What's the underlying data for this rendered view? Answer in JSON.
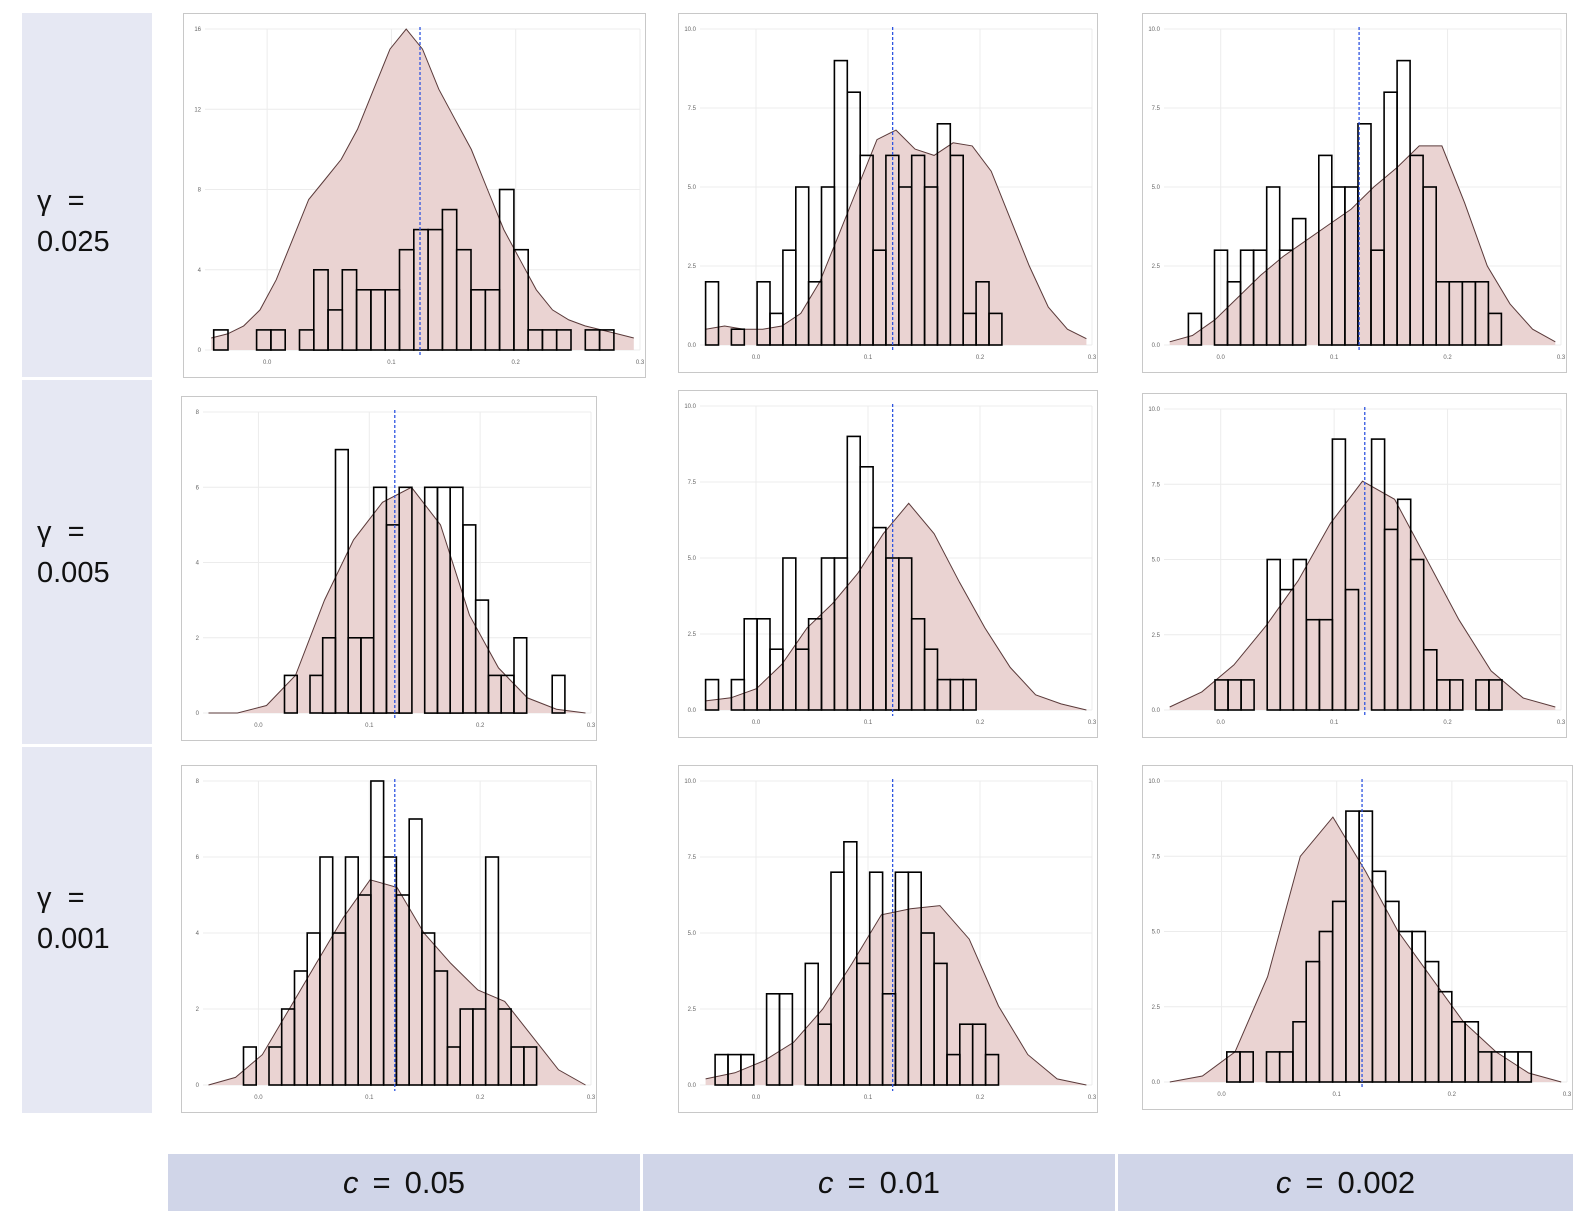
{
  "row_labels": [
    {
      "symbol": "γ",
      "equals": "=",
      "value": "0.025"
    },
    {
      "symbol": "γ",
      "equals": "=",
      "value": "0.005"
    },
    {
      "symbol": "γ",
      "equals": "=",
      "value": "0.001"
    }
  ],
  "col_labels": [
    {
      "symbol": "c",
      "equals": "=",
      "value": "0.05"
    },
    {
      "symbol": "c",
      "equals": "=",
      "value": "0.01"
    },
    {
      "symbol": "c",
      "equals": "=",
      "value": "0.002"
    }
  ],
  "colors": {
    "density_fill": "#ead3d2",
    "density_line": "#5a3a3a",
    "bar_outline": "#000000",
    "reference_line": "#2f55e0",
    "grid": "#ececec",
    "row_label_bg": "#e6e8f3",
    "col_label_bg": "#d0d5e8"
  },
  "chart_data": [
    {
      "type": "bar",
      "row": 0,
      "col": 0,
      "x_ticks": [
        "0.0",
        "0.1",
        "0.2",
        "0.3"
      ],
      "y_ticks": [
        "0",
        "4",
        "8",
        "12",
        "16"
      ],
      "xlim": [
        -0.05,
        0.3
      ],
      "ylim": [
        0,
        16
      ],
      "vline": 0.123,
      "bin_start": -0.043,
      "bin_width": 0.0115,
      "counts": [
        1,
        0,
        0,
        1,
        1,
        0,
        1,
        4,
        2,
        4,
        3,
        3,
        3,
        5,
        6,
        6,
        7,
        5,
        3,
        3,
        8,
        5,
        1,
        1,
        1,
        0,
        1,
        1
      ],
      "density": [
        0.6,
        0.8,
        1.2,
        2.0,
        3.5,
        5.5,
        7.5,
        8.5,
        9.5,
        11,
        13,
        15,
        16,
        15,
        13,
        11.5,
        10,
        8,
        6,
        4.5,
        3,
        2,
        1.5,
        1.2,
        1,
        0.8,
        0.6
      ]
    },
    {
      "type": "bar",
      "row": 0,
      "col": 1,
      "x_ticks": [
        "0.0",
        "0.1",
        "0.2",
        "0.3"
      ],
      "y_ticks": [
        "0.0",
        "2.5",
        "5.0",
        "7.5",
        "10.0"
      ],
      "xlim": [
        -0.05,
        0.3
      ],
      "ylim": [
        0,
        10
      ],
      "vline": 0.122,
      "bin_start": -0.045,
      "bin_width": 0.0115,
      "counts": [
        2,
        0,
        0.5,
        0,
        2,
        1,
        3,
        5,
        2,
        5,
        9,
        8,
        6,
        3,
        6,
        5,
        6,
        5,
        7,
        6,
        1,
        2,
        1,
        0,
        0,
        0,
        0,
        0,
        0,
        0
      ],
      "density": [
        0.5,
        0.6,
        0.5,
        0.5,
        0.6,
        1,
        2,
        3.5,
        5,
        6.5,
        6.8,
        6.2,
        6.0,
        6.4,
        6.3,
        5.5,
        4,
        2.5,
        1.2,
        0.5,
        0.2
      ]
    },
    {
      "type": "bar",
      "row": 0,
      "col": 2,
      "x_ticks": [
        "0.0",
        "0.1",
        "0.2",
        "0.3"
      ],
      "y_ticks": [
        "0.0",
        "2.5",
        "5.0",
        "7.5",
        "10.0"
      ],
      "xlim": [
        -0.05,
        0.3
      ],
      "ylim": [
        0,
        10
      ],
      "vline": 0.122,
      "bin_start": -0.04,
      "bin_width": 0.0115,
      "counts": [
        0,
        1,
        0,
        3,
        2,
        3,
        3,
        5,
        3,
        4,
        0,
        6,
        5,
        5,
        7,
        3,
        8,
        9,
        6,
        5,
        2,
        2,
        2,
        2,
        1,
        0,
        0,
        0,
        0,
        0
      ],
      "density": [
        0.1,
        0.3,
        0.8,
        1.5,
        2.2,
        2.8,
        3.3,
        3.8,
        4.3,
        5,
        5.6,
        6.3,
        6.3,
        4.5,
        2.5,
        1.3,
        0.5,
        0.1
      ]
    },
    {
      "type": "bar",
      "row": 1,
      "col": 0,
      "x_ticks": [
        "0.0",
        "0.1",
        "0.2",
        "0.3"
      ],
      "y_ticks": [
        "0",
        "2",
        "4",
        "6",
        "8"
      ],
      "xlim": [
        -0.05,
        0.3
      ],
      "ylim": [
        0,
        8
      ],
      "vline": 0.123,
      "bin_start": 0.012,
      "bin_width": 0.0115,
      "counts": [
        0,
        1,
        0,
        1,
        2,
        7,
        2,
        2,
        6,
        5,
        6,
        0,
        6,
        6,
        6,
        5,
        3,
        1,
        1,
        2,
        0,
        0,
        1,
        0
      ],
      "density": [
        0,
        0,
        0.2,
        1.0,
        3.0,
        4.6,
        5.6,
        6.0,
        5.0,
        2.6,
        1.2,
        0.4,
        0.1,
        0
      ]
    },
    {
      "type": "bar",
      "row": 1,
      "col": 1,
      "x_ticks": [
        "0.0",
        "0.1",
        "0.2",
        "0.3"
      ],
      "y_ticks": [
        "0.0",
        "2.5",
        "5.0",
        "7.5",
        "10.0"
      ],
      "xlim": [
        -0.05,
        0.3
      ],
      "ylim": [
        0,
        10
      ],
      "vline": 0.122,
      "bin_start": -0.045,
      "bin_width": 0.0115,
      "counts": [
        1,
        0,
        1,
        3,
        3,
        2,
        5,
        2,
        3,
        5,
        5,
        9,
        8,
        6,
        5,
        5,
        3,
        2,
        1,
        1,
        1,
        0,
        0,
        0,
        0
      ],
      "density": [
        0.3,
        0.4,
        0.7,
        1.5,
        2.7,
        3.5,
        4.5,
        5.8,
        6.8,
        5.8,
        4.2,
        2.7,
        1.4,
        0.5,
        0.2,
        0
      ]
    },
    {
      "type": "bar",
      "row": 1,
      "col": 2,
      "x_ticks": [
        "0.0",
        "0.1",
        "0.2",
        "0.3"
      ],
      "y_ticks": [
        "0.0",
        "2.5",
        "5.0",
        "7.5",
        "10.0"
      ],
      "xlim": [
        -0.05,
        0.3
      ],
      "ylim": [
        0,
        10
      ],
      "vline": 0.127,
      "bin_start": -0.005,
      "bin_width": 0.0115,
      "counts": [
        1,
        1,
        1,
        0,
        5,
        4,
        5,
        3,
        3,
        9,
        4,
        0,
        9,
        6,
        7,
        5,
        2,
        1,
        1,
        0,
        1,
        1,
        0,
        0
      ],
      "density": [
        0.1,
        0.6,
        1.5,
        2.8,
        4.3,
        6.2,
        7.6,
        7.0,
        5.0,
        3.0,
        1.3,
        0.4,
        0.1
      ]
    },
    {
      "type": "bar",
      "row": 2,
      "col": 0,
      "x_ticks": [
        "0.0",
        "0.1",
        "0.2",
        "0.3"
      ],
      "y_ticks": [
        "0",
        "2",
        "4",
        "6",
        "8"
      ],
      "xlim": [
        -0.05,
        0.3
      ],
      "ylim": [
        0,
        8
      ],
      "vline": 0.123,
      "bin_start": -0.025,
      "bin_width": 0.0115,
      "counts": [
        0,
        1,
        0,
        1,
        2,
        3,
        4,
        6,
        4,
        6,
        5,
        8,
        6,
        5,
        7,
        4,
        3,
        1,
        2,
        2,
        6,
        2,
        1,
        1,
        0,
        0,
        0,
        0
      ],
      "density": [
        0,
        0.2,
        0.8,
        2.0,
        3.2,
        4.4,
        5.4,
        5.2,
        4.0,
        3.2,
        2.5,
        2.2,
        1.3,
        0.4,
        0
      ]
    },
    {
      "type": "bar",
      "row": 2,
      "col": 1,
      "x_ticks": [
        "0.0",
        "0.1",
        "0.2",
        "0.3"
      ],
      "y_ticks": [
        "0.0",
        "2.5",
        "5.0",
        "7.5",
        "10.0"
      ],
      "xlim": [
        -0.05,
        0.3
      ],
      "ylim": [
        0,
        10
      ],
      "vline": 0.122,
      "bin_start": -0.048,
      "bin_width": 0.0115,
      "counts": [
        0,
        1,
        1,
        1,
        0,
        3,
        3,
        0,
        4,
        2,
        7,
        8,
        4,
        7,
        3,
        7,
        7,
        5,
        4,
        1,
        2,
        2,
        1,
        0,
        0
      ],
      "density": [
        0.2,
        0.4,
        0.8,
        1.4,
        2.5,
        4.0,
        5.6,
        5.8,
        5.9,
        4.8,
        2.6,
        1.0,
        0.2,
        0
      ]
    },
    {
      "type": "bar",
      "row": 2,
      "col": 2,
      "x_ticks": [
        "0.0",
        "0.1",
        "0.2",
        "0.3"
      ],
      "y_ticks": [
        "0.0",
        "2.5",
        "5.0",
        "7.5",
        "10.0"
      ],
      "xlim": [
        -0.05,
        0.3
      ],
      "ylim": [
        0,
        10
      ],
      "vline": 0.122,
      "bin_start": -0.007,
      "bin_width": 0.0115,
      "counts": [
        0,
        1,
        1,
        0,
        1,
        1,
        2,
        4,
        5,
        6,
        9,
        9,
        7,
        6,
        5,
        5,
        4,
        3,
        2,
        2,
        1,
        1,
        1,
        1
      ],
      "density": [
        0,
        0.2,
        1.0,
        3.5,
        7.5,
        8.8,
        7.0,
        5.0,
        3.5,
        2.0,
        1.0,
        0.3,
        0
      ]
    }
  ]
}
